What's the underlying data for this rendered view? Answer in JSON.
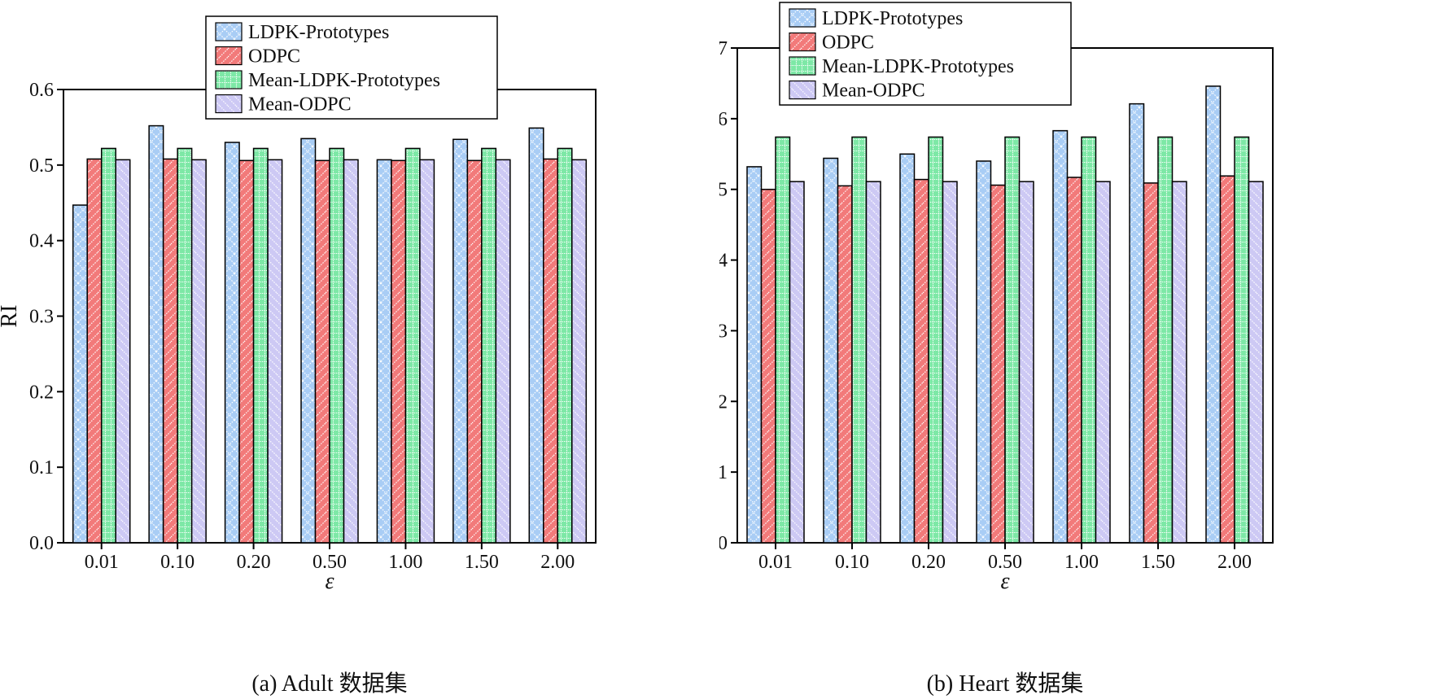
{
  "chart_data": [
    {
      "type": "bar",
      "caption": "(a) Adult 数据集",
      "xlabel": "ε",
      "ylabel": "RI",
      "ylim": [
        0,
        0.6
      ],
      "yticks": [
        "0.0",
        "0.1",
        "0.2",
        "0.3",
        "0.4",
        "0.5",
        "0.6"
      ],
      "categories": [
        "0.01",
        "0.10",
        "0.20",
        "0.50",
        "1.00",
        "1.50",
        "2.00"
      ],
      "legend_position": "top-center, overlapping upper frame",
      "series": [
        {
          "name": "LDPK-Prototypes",
          "values": [
            0.447,
            0.552,
            0.53,
            0.535,
            0.507,
            0.534,
            0.549
          ]
        },
        {
          "name": "ODPC",
          "values": [
            0.508,
            0.508,
            0.506,
            0.506,
            0.506,
            0.506,
            0.508
          ]
        },
        {
          "name": "Mean-LDPK-Prototypes",
          "values": [
            0.522,
            0.522,
            0.522,
            0.522,
            0.522,
            0.522,
            0.522
          ]
        },
        {
          "name": "Mean-ODPC",
          "values": [
            0.507,
            0.507,
            0.507,
            0.507,
            0.507,
            0.507,
            0.507
          ]
        }
      ]
    },
    {
      "type": "bar",
      "caption": "(b) Heart 数据集",
      "xlabel": "ε",
      "ylabel": "RI",
      "ylim": [
        0,
        0.7
      ],
      "yticks": [
        "0.0",
        "0.1",
        "0.2",
        "0.3",
        "0.4",
        "0.5",
        "0.6",
        "0.7"
      ],
      "categories": [
        "0.01",
        "0.10",
        "0.20",
        "0.50",
        "1.00",
        "1.50",
        "2.00"
      ],
      "legend_position": "top-left, overlapping upper frame",
      "series": [
        {
          "name": "LDPK-Prototypes",
          "values": [
            0.532,
            0.544,
            0.55,
            0.54,
            0.583,
            0.621,
            0.646
          ]
        },
        {
          "name": "ODPC",
          "values": [
            0.5,
            0.505,
            0.514,
            0.506,
            0.517,
            0.509,
            0.519
          ]
        },
        {
          "name": "Mean-LDPK-Prototypes",
          "values": [
            0.574,
            0.574,
            0.574,
            0.574,
            0.574,
            0.574,
            0.574
          ]
        },
        {
          "name": "Mean-ODPC",
          "values": [
            0.511,
            0.511,
            0.511,
            0.511,
            0.511,
            0.511,
            0.511
          ]
        }
      ]
    }
  ],
  "series_styles": [
    {
      "fill": "#a9cdf5",
      "pattern": "cross-hatch-dotted"
    },
    {
      "fill": "#f27a7a",
      "pattern": "diagonal-dotted"
    },
    {
      "fill": "#7de8a6",
      "pattern": "grid-dotted"
    },
    {
      "fill": "#cdc9f4",
      "pattern": "diagonal-dotted"
    }
  ]
}
